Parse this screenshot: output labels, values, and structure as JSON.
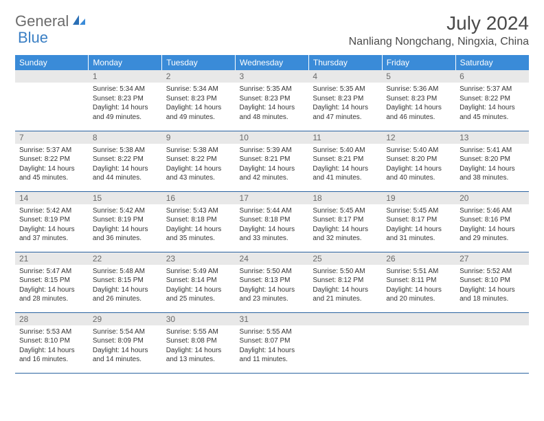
{
  "brand": {
    "text_gray": "General",
    "text_blue": "Blue"
  },
  "title": {
    "month": "July 2024",
    "location": "Nanliang Nongchang, Ningxia, China"
  },
  "colors": {
    "header_bg": "#3a8bd8",
    "header_text": "#ffffff",
    "daynum_bg": "#e8e8e8",
    "daynum_text": "#696969",
    "row_border": "#2962a0",
    "brand_gray": "#6b6b6b",
    "brand_blue": "#3a7fc4",
    "body_text": "#333333",
    "page_bg": "#ffffff"
  },
  "fonts": {
    "title_pt": 28,
    "location_pt": 16,
    "th_pt": 12,
    "daynum_pt": 12,
    "body_pt": 10
  },
  "day_headers": [
    "Sunday",
    "Monday",
    "Tuesday",
    "Wednesday",
    "Thursday",
    "Friday",
    "Saturday"
  ],
  "weeks": [
    [
      {
        "n": ""
      },
      {
        "n": "1",
        "sr": "Sunrise: 5:34 AM",
        "ss": "Sunset: 8:23 PM",
        "d1": "Daylight: 14 hours",
        "d2": "and 49 minutes."
      },
      {
        "n": "2",
        "sr": "Sunrise: 5:34 AM",
        "ss": "Sunset: 8:23 PM",
        "d1": "Daylight: 14 hours",
        "d2": "and 49 minutes."
      },
      {
        "n": "3",
        "sr": "Sunrise: 5:35 AM",
        "ss": "Sunset: 8:23 PM",
        "d1": "Daylight: 14 hours",
        "d2": "and 48 minutes."
      },
      {
        "n": "4",
        "sr": "Sunrise: 5:35 AM",
        "ss": "Sunset: 8:23 PM",
        "d1": "Daylight: 14 hours",
        "d2": "and 47 minutes."
      },
      {
        "n": "5",
        "sr": "Sunrise: 5:36 AM",
        "ss": "Sunset: 8:23 PM",
        "d1": "Daylight: 14 hours",
        "d2": "and 46 minutes."
      },
      {
        "n": "6",
        "sr": "Sunrise: 5:37 AM",
        "ss": "Sunset: 8:22 PM",
        "d1": "Daylight: 14 hours",
        "d2": "and 45 minutes."
      }
    ],
    [
      {
        "n": "7",
        "sr": "Sunrise: 5:37 AM",
        "ss": "Sunset: 8:22 PM",
        "d1": "Daylight: 14 hours",
        "d2": "and 45 minutes."
      },
      {
        "n": "8",
        "sr": "Sunrise: 5:38 AM",
        "ss": "Sunset: 8:22 PM",
        "d1": "Daylight: 14 hours",
        "d2": "and 44 minutes."
      },
      {
        "n": "9",
        "sr": "Sunrise: 5:38 AM",
        "ss": "Sunset: 8:22 PM",
        "d1": "Daylight: 14 hours",
        "d2": "and 43 minutes."
      },
      {
        "n": "10",
        "sr": "Sunrise: 5:39 AM",
        "ss": "Sunset: 8:21 PM",
        "d1": "Daylight: 14 hours",
        "d2": "and 42 minutes."
      },
      {
        "n": "11",
        "sr": "Sunrise: 5:40 AM",
        "ss": "Sunset: 8:21 PM",
        "d1": "Daylight: 14 hours",
        "d2": "and 41 minutes."
      },
      {
        "n": "12",
        "sr": "Sunrise: 5:40 AM",
        "ss": "Sunset: 8:20 PM",
        "d1": "Daylight: 14 hours",
        "d2": "and 40 minutes."
      },
      {
        "n": "13",
        "sr": "Sunrise: 5:41 AM",
        "ss": "Sunset: 8:20 PM",
        "d1": "Daylight: 14 hours",
        "d2": "and 38 minutes."
      }
    ],
    [
      {
        "n": "14",
        "sr": "Sunrise: 5:42 AM",
        "ss": "Sunset: 8:19 PM",
        "d1": "Daylight: 14 hours",
        "d2": "and 37 minutes."
      },
      {
        "n": "15",
        "sr": "Sunrise: 5:42 AM",
        "ss": "Sunset: 8:19 PM",
        "d1": "Daylight: 14 hours",
        "d2": "and 36 minutes."
      },
      {
        "n": "16",
        "sr": "Sunrise: 5:43 AM",
        "ss": "Sunset: 8:18 PM",
        "d1": "Daylight: 14 hours",
        "d2": "and 35 minutes."
      },
      {
        "n": "17",
        "sr": "Sunrise: 5:44 AM",
        "ss": "Sunset: 8:18 PM",
        "d1": "Daylight: 14 hours",
        "d2": "and 33 minutes."
      },
      {
        "n": "18",
        "sr": "Sunrise: 5:45 AM",
        "ss": "Sunset: 8:17 PM",
        "d1": "Daylight: 14 hours",
        "d2": "and 32 minutes."
      },
      {
        "n": "19",
        "sr": "Sunrise: 5:45 AM",
        "ss": "Sunset: 8:17 PM",
        "d1": "Daylight: 14 hours",
        "d2": "and 31 minutes."
      },
      {
        "n": "20",
        "sr": "Sunrise: 5:46 AM",
        "ss": "Sunset: 8:16 PM",
        "d1": "Daylight: 14 hours",
        "d2": "and 29 minutes."
      }
    ],
    [
      {
        "n": "21",
        "sr": "Sunrise: 5:47 AM",
        "ss": "Sunset: 8:15 PM",
        "d1": "Daylight: 14 hours",
        "d2": "and 28 minutes."
      },
      {
        "n": "22",
        "sr": "Sunrise: 5:48 AM",
        "ss": "Sunset: 8:15 PM",
        "d1": "Daylight: 14 hours",
        "d2": "and 26 minutes."
      },
      {
        "n": "23",
        "sr": "Sunrise: 5:49 AM",
        "ss": "Sunset: 8:14 PM",
        "d1": "Daylight: 14 hours",
        "d2": "and 25 minutes."
      },
      {
        "n": "24",
        "sr": "Sunrise: 5:50 AM",
        "ss": "Sunset: 8:13 PM",
        "d1": "Daylight: 14 hours",
        "d2": "and 23 minutes."
      },
      {
        "n": "25",
        "sr": "Sunrise: 5:50 AM",
        "ss": "Sunset: 8:12 PM",
        "d1": "Daylight: 14 hours",
        "d2": "and 21 minutes."
      },
      {
        "n": "26",
        "sr": "Sunrise: 5:51 AM",
        "ss": "Sunset: 8:11 PM",
        "d1": "Daylight: 14 hours",
        "d2": "and 20 minutes."
      },
      {
        "n": "27",
        "sr": "Sunrise: 5:52 AM",
        "ss": "Sunset: 8:10 PM",
        "d1": "Daylight: 14 hours",
        "d2": "and 18 minutes."
      }
    ],
    [
      {
        "n": "28",
        "sr": "Sunrise: 5:53 AM",
        "ss": "Sunset: 8:10 PM",
        "d1": "Daylight: 14 hours",
        "d2": "and 16 minutes."
      },
      {
        "n": "29",
        "sr": "Sunrise: 5:54 AM",
        "ss": "Sunset: 8:09 PM",
        "d1": "Daylight: 14 hours",
        "d2": "and 14 minutes."
      },
      {
        "n": "30",
        "sr": "Sunrise: 5:55 AM",
        "ss": "Sunset: 8:08 PM",
        "d1": "Daylight: 14 hours",
        "d2": "and 13 minutes."
      },
      {
        "n": "31",
        "sr": "Sunrise: 5:55 AM",
        "ss": "Sunset: 8:07 PM",
        "d1": "Daylight: 14 hours",
        "d2": "and 11 minutes."
      },
      {
        "n": ""
      },
      {
        "n": ""
      },
      {
        "n": ""
      }
    ]
  ]
}
